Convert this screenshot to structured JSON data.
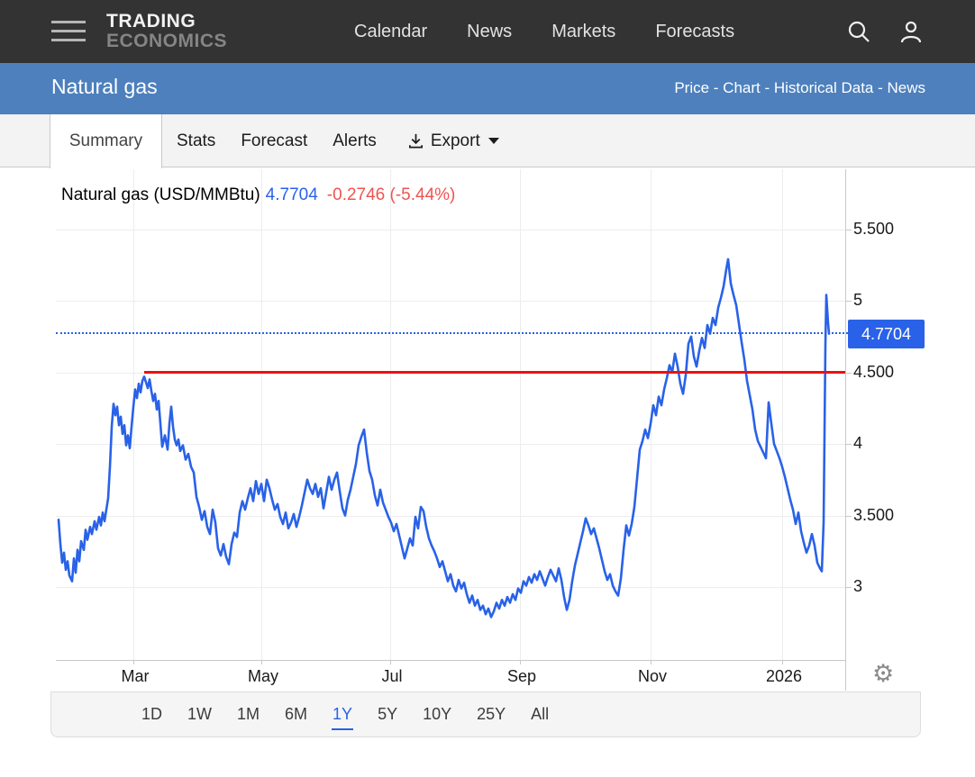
{
  "topnav": {
    "logo_line1": "TRADING",
    "logo_line2": "ECONOMICS",
    "links": [
      "Calendar",
      "News",
      "Markets",
      "Forecasts"
    ],
    "icons": [
      "search-icon",
      "user-icon"
    ]
  },
  "subheader": {
    "title": "Natural gas",
    "breadcrumb": "Price - Chart - Historical Data - News"
  },
  "tabs": {
    "active": "Summary",
    "items": [
      "Stats",
      "Forecast",
      "Alerts"
    ],
    "export_label": "Export"
  },
  "quote": {
    "instrument": "Natural gas (USD/MMBtu)",
    "price": "4.7704",
    "change": "-0.2746 (-5.44%)"
  },
  "price_axis_label": "4.7704",
  "gear_icon": "⚙",
  "range_buttons": [
    "1D",
    "1W",
    "1M",
    "6M",
    "1Y",
    "5Y",
    "10Y",
    "25Y",
    "All"
  ],
  "range_active": "1Y",
  "colors": {
    "accent_blue": "#2962e8",
    "change_red": "#ef5350",
    "drawing_red": "#ed1111",
    "header_blue": "#4d80bd",
    "topnav_bg": "#333333"
  },
  "chart_data": {
    "type": "line",
    "title": "Natural gas (USD/MMBtu)",
    "last_price": 4.7704,
    "change": -0.2746,
    "change_pct": "-5.44%",
    "x_ticks": [
      "Mar",
      "May",
      "Jul",
      "Sep",
      "Nov",
      "2026"
    ],
    "y_ticks": [
      "5.500",
      "5",
      "4.500",
      "4",
      "3.500",
      "3"
    ],
    "y_tick_values": [
      5.5,
      5,
      4.5,
      4,
      3.5,
      3
    ],
    "ylim": [
      2.7,
      5.6
    ],
    "grid": true,
    "annotations": {
      "horizontal_trendline": {
        "value": 4.5,
        "color": "#ed1111",
        "from_x_tick": "Mar"
      },
      "current_price_line": {
        "value": 4.7704,
        "style": "dotted",
        "color": "#2962e8"
      }
    },
    "series": [
      {
        "name": "Natural gas",
        "color": "#2962e8",
        "points": [
          [
            65,
            3.47
          ],
          [
            67,
            3.3
          ],
          [
            69,
            3.17
          ],
          [
            71,
            3.24
          ],
          [
            73,
            3.12
          ],
          [
            75,
            3.18
          ],
          [
            77,
            3.08
          ],
          [
            80,
            3.04
          ],
          [
            82,
            3.2
          ],
          [
            84,
            3.1
          ],
          [
            86,
            3.26
          ],
          [
            88,
            3.18
          ],
          [
            90,
            3.32
          ],
          [
            93,
            3.26
          ],
          [
            95,
            3.4
          ],
          [
            97,
            3.33
          ],
          [
            100,
            3.42
          ],
          [
            102,
            3.37
          ],
          [
            105,
            3.46
          ],
          [
            107,
            3.4
          ],
          [
            110,
            3.49
          ],
          [
            112,
            3.43
          ],
          [
            114,
            3.52
          ],
          [
            116,
            3.46
          ],
          [
            118,
            3.54
          ],
          [
            120,
            3.62
          ],
          [
            122,
            3.84
          ],
          [
            124,
            4.12
          ],
          [
            126,
            4.28
          ],
          [
            128,
            4.2
          ],
          [
            130,
            4.26
          ],
          [
            132,
            4.13
          ],
          [
            134,
            4.19
          ],
          [
            136,
            4.07
          ],
          [
            138,
            4.13
          ],
          [
            140,
            3.99
          ],
          [
            142,
            4.06
          ],
          [
            144,
            3.97
          ],
          [
            146,
            4.12
          ],
          [
            148,
            4.26
          ],
          [
            150,
            4.38
          ],
          [
            152,
            4.32
          ],
          [
            154,
            4.42
          ],
          [
            156,
            4.36
          ],
          [
            158,
            4.44
          ],
          [
            160,
            4.47
          ],
          [
            162,
            4.43
          ],
          [
            164,
            4.39
          ],
          [
            166,
            4.45
          ],
          [
            168,
            4.37
          ],
          [
            170,
            4.3
          ],
          [
            172,
            4.35
          ],
          [
            174,
            4.24
          ],
          [
            176,
            4.3
          ],
          [
            178,
            4.14
          ],
          [
            180,
            3.98
          ],
          [
            183,
            4.06
          ],
          [
            186,
            3.96
          ],
          [
            188,
            4.14
          ],
          [
            190,
            4.26
          ],
          [
            192,
            4.12
          ],
          [
            194,
            4.03
          ],
          [
            196,
            3.99
          ],
          [
            198,
            4.03
          ],
          [
            200,
            3.95
          ],
          [
            203,
            3.99
          ],
          [
            206,
            3.89
          ],
          [
            209,
            3.93
          ],
          [
            212,
            3.84
          ],
          [
            215,
            3.8
          ],
          [
            218,
            3.63
          ],
          [
            221,
            3.56
          ],
          [
            224,
            3.47
          ],
          [
            227,
            3.53
          ],
          [
            230,
            3.42
          ],
          [
            233,
            3.37
          ],
          [
            236,
            3.54
          ],
          [
            239,
            3.45
          ],
          [
            242,
            3.27
          ],
          [
            245,
            3.22
          ],
          [
            248,
            3.3
          ],
          [
            251,
            3.21
          ],
          [
            254,
            3.16
          ],
          [
            257,
            3.3
          ],
          [
            260,
            3.38
          ],
          [
            263,
            3.35
          ],
          [
            266,
            3.52
          ],
          [
            269,
            3.6
          ],
          [
            272,
            3.54
          ],
          [
            275,
            3.62
          ],
          [
            278,
            3.69
          ],
          [
            281,
            3.6
          ],
          [
            284,
            3.74
          ],
          [
            287,
            3.65
          ],
          [
            290,
            3.72
          ],
          [
            293,
            3.6
          ],
          [
            296,
            3.75
          ],
          [
            299,
            3.69
          ],
          [
            302,
            3.61
          ],
          [
            305,
            3.54
          ],
          [
            308,
            3.58
          ],
          [
            311,
            3.49
          ],
          [
            314,
            3.44
          ],
          [
            317,
            3.52
          ],
          [
            320,
            3.41
          ],
          [
            323,
            3.45
          ],
          [
            326,
            3.51
          ],
          [
            329,
            3.42
          ],
          [
            332,
            3.49
          ],
          [
            335,
            3.57
          ],
          [
            338,
            3.66
          ],
          [
            341,
            3.75
          ],
          [
            344,
            3.69
          ],
          [
            347,
            3.65
          ],
          [
            350,
            3.72
          ],
          [
            353,
            3.63
          ],
          [
            356,
            3.69
          ],
          [
            359,
            3.55
          ],
          [
            362,
            3.66
          ],
          [
            365,
            3.77
          ],
          [
            368,
            3.68
          ],
          [
            371,
            3.75
          ],
          [
            374,
            3.8
          ],
          [
            377,
            3.67
          ],
          [
            380,
            3.55
          ],
          [
            383,
            3.5
          ],
          [
            386,
            3.61
          ],
          [
            389,
            3.68
          ],
          [
            392,
            3.77
          ],
          [
            395,
            3.86
          ],
          [
            398,
            3.99
          ],
          [
            401,
            4.05
          ],
          [
            404,
            4.1
          ],
          [
            407,
            3.94
          ],
          [
            410,
            3.81
          ],
          [
            413,
            3.75
          ],
          [
            416,
            3.64
          ],
          [
            419,
            3.57
          ],
          [
            422,
            3.68
          ],
          [
            425,
            3.59
          ],
          [
            428,
            3.54
          ],
          [
            431,
            3.49
          ],
          [
            434,
            3.45
          ],
          [
            437,
            3.39
          ],
          [
            440,
            3.44
          ],
          [
            443,
            3.36
          ],
          [
            446,
            3.28
          ],
          [
            449,
            3.2
          ],
          [
            452,
            3.27
          ],
          [
            455,
            3.34
          ],
          [
            458,
            3.29
          ],
          [
            461,
            3.49
          ],
          [
            464,
            3.41
          ],
          [
            467,
            3.56
          ],
          [
            470,
            3.53
          ],
          [
            473,
            3.42
          ],
          [
            476,
            3.34
          ],
          [
            479,
            3.29
          ],
          [
            482,
            3.25
          ],
          [
            485,
            3.2
          ],
          [
            488,
            3.14
          ],
          [
            491,
            3.18
          ],
          [
            494,
            3.11
          ],
          [
            497,
            3.04
          ],
          [
            500,
            3.09
          ],
          [
            503,
            3.01
          ],
          [
            506,
            2.97
          ],
          [
            509,
            3.05
          ],
          [
            512,
            2.99
          ],
          [
            515,
            3.03
          ],
          [
            518,
            2.95
          ],
          [
            521,
            2.89
          ],
          [
            524,
            2.94
          ],
          [
            527,
            2.87
          ],
          [
            530,
            2.91
          ],
          [
            533,
            2.84
          ],
          [
            536,
            2.87
          ],
          [
            539,
            2.81
          ],
          [
            542,
            2.85
          ],
          [
            545,
            2.79
          ],
          [
            548,
            2.83
          ],
          [
            551,
            2.89
          ],
          [
            554,
            2.85
          ],
          [
            557,
            2.91
          ],
          [
            560,
            2.87
          ],
          [
            563,
            2.93
          ],
          [
            566,
            2.89
          ],
          [
            569,
            2.95
          ],
          [
            572,
            2.91
          ],
          [
            575,
            2.99
          ],
          [
            578,
            2.96
          ],
          [
            581,
            3.04
          ],
          [
            584,
            3.01
          ],
          [
            587,
            3.07
          ],
          [
            590,
            3.03
          ],
          [
            593,
            3.09
          ],
          [
            596,
            3.05
          ],
          [
            599,
            3.11
          ],
          [
            602,
            3.06
          ],
          [
            605,
            3.01
          ],
          [
            608,
            3.07
          ],
          [
            611,
            3.12
          ],
          [
            614,
            3.08
          ],
          [
            617,
            3.04
          ],
          [
            620,
            3.13
          ],
          [
            623,
            3.05
          ],
          [
            626,
            2.93
          ],
          [
            629,
            2.84
          ],
          [
            632,
            2.91
          ],
          [
            635,
            3.04
          ],
          [
            638,
            3.15
          ],
          [
            641,
            3.23
          ],
          [
            644,
            3.31
          ],
          [
            647,
            3.39
          ],
          [
            650,
            3.48
          ],
          [
            653,
            3.43
          ],
          [
            656,
            3.37
          ],
          [
            659,
            3.41
          ],
          [
            662,
            3.34
          ],
          [
            665,
            3.27
          ],
          [
            668,
            3.19
          ],
          [
            671,
            3.11
          ],
          [
            674,
            3.05
          ],
          [
            677,
            3.09
          ],
          [
            680,
            3.01
          ],
          [
            683,
            2.97
          ],
          [
            686,
            2.94
          ],
          [
            689,
            3.06
          ],
          [
            692,
            3.26
          ],
          [
            695,
            3.43
          ],
          [
            698,
            3.36
          ],
          [
            701,
            3.44
          ],
          [
            704,
            3.56
          ],
          [
            707,
            3.76
          ],
          [
            710,
            3.96
          ],
          [
            713,
            4.02
          ],
          [
            716,
            4.1
          ],
          [
            719,
            4.04
          ],
          [
            722,
            4.14
          ],
          [
            725,
            4.27
          ],
          [
            728,
            4.2
          ],
          [
            731,
            4.33
          ],
          [
            734,
            4.27
          ],
          [
            737,
            4.38
          ],
          [
            740,
            4.46
          ],
          [
            743,
            4.55
          ],
          [
            746,
            4.5
          ],
          [
            749,
            4.63
          ],
          [
            752,
            4.54
          ],
          [
            755,
            4.42
          ],
          [
            758,
            4.35
          ],
          [
            761,
            4.48
          ],
          [
            764,
            4.7
          ],
          [
            767,
            4.75
          ],
          [
            770,
            4.61
          ],
          [
            773,
            4.54
          ],
          [
            776,
            4.65
          ],
          [
            779,
            4.74
          ],
          [
            782,
            4.67
          ],
          [
            785,
            4.83
          ],
          [
            788,
            4.77
          ],
          [
            791,
            4.88
          ],
          [
            794,
            4.83
          ],
          [
            797,
            4.95
          ],
          [
            800,
            5.02
          ],
          [
            803,
            5.1
          ],
          [
            806,
            5.22
          ],
          [
            808,
            5.29
          ],
          [
            811,
            5.12
          ],
          [
            814,
            5.04
          ],
          [
            817,
            4.97
          ],
          [
            820,
            4.84
          ],
          [
            823,
            4.71
          ],
          [
            826,
            4.59
          ],
          [
            829,
            4.44
          ],
          [
            832,
            4.34
          ],
          [
            835,
            4.24
          ],
          [
            838,
            4.1
          ],
          [
            841,
            4.02
          ],
          [
            844,
            3.98
          ],
          [
            847,
            3.94
          ],
          [
            850,
            3.9
          ],
          [
            853,
            4.29
          ],
          [
            856,
            4.14
          ],
          [
            859,
            4.0
          ],
          [
            862,
            3.95
          ],
          [
            865,
            3.9
          ],
          [
            868,
            3.84
          ],
          [
            871,
            3.77
          ],
          [
            874,
            3.69
          ],
          [
            877,
            3.61
          ],
          [
            880,
            3.54
          ],
          [
            883,
            3.44
          ],
          [
            886,
            3.52
          ],
          [
            889,
            3.39
          ],
          [
            892,
            3.31
          ],
          [
            895,
            3.24
          ],
          [
            898,
            3.29
          ],
          [
            901,
            3.37
          ],
          [
            904,
            3.29
          ],
          [
            907,
            3.17
          ],
          [
            910,
            3.13
          ],
          [
            912,
            3.11
          ],
          [
            914,
            3.45
          ],
          [
            916,
            4.7
          ],
          [
            917,
            5.04
          ],
          [
            919,
            4.84
          ],
          [
            920,
            4.77
          ]
        ]
      }
    ]
  }
}
